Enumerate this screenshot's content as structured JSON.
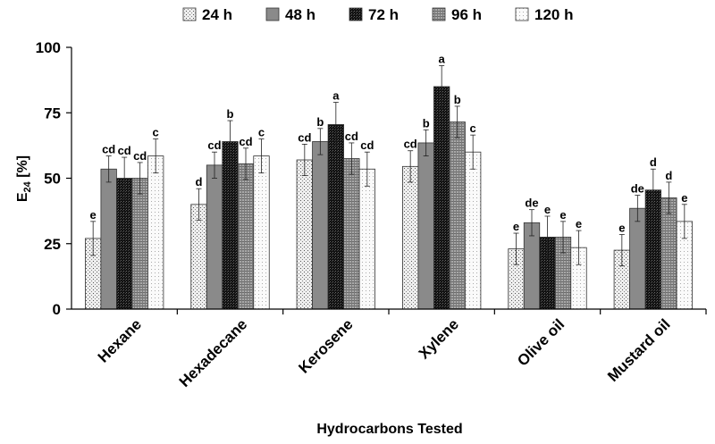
{
  "chart_data": {
    "type": "bar",
    "title": "",
    "xlabel": "Hydrocarbons Tested",
    "ylabel_main": "E",
    "ylabel_sub": "24",
    "ylabel_suffix": " [%]",
    "ylim": [
      0,
      100
    ],
    "yticks": [
      "0",
      "25",
      "50",
      "75",
      "100"
    ],
    "ytick_values": [
      0,
      25,
      50,
      75,
      100
    ],
    "grid": false,
    "legend_position": "top",
    "categories": [
      "Hexane",
      "Hexadecane",
      "Kerosene",
      "Xylene",
      "Olive oil",
      "Mustard oil"
    ],
    "series": [
      {
        "name": "24 h",
        "values": [
          27,
          40,
          57,
          54.5,
          23,
          22.5
        ],
        "errors": [
          6.5,
          6,
          6,
          6,
          6,
          6
        ],
        "letters": [
          "e",
          "d",
          "cd",
          "cd",
          "e",
          "e"
        ],
        "pattern": "dots-sparse",
        "color": "#e8e8e8"
      },
      {
        "name": "48 h",
        "values": [
          53.5,
          55,
          64,
          63.5,
          33,
          38.5
        ],
        "errors": [
          5,
          5,
          5,
          5,
          5,
          5
        ],
        "letters": [
          "cd",
          "cd",
          "b",
          "b",
          "de",
          "de"
        ],
        "pattern": "solid",
        "color": "#8a8a8a"
      },
      {
        "name": "72 h",
        "values": [
          50,
          64,
          70.5,
          85,
          27.5,
          45.5
        ],
        "errors": [
          8,
          8,
          8.5,
          8,
          8,
          8
        ],
        "letters": [
          "cd",
          "b",
          "a",
          "a",
          "e",
          "d"
        ],
        "pattern": "dark-check",
        "color": "#2a2a2a"
      },
      {
        "name": "96 h",
        "values": [
          50,
          55.5,
          57.5,
          71.5,
          27.5,
          42.5
        ],
        "errors": [
          6,
          6,
          6,
          6,
          6,
          6
        ],
        "letters": [
          "cd",
          "cd",
          "cd",
          "b",
          "e",
          "d"
        ],
        "pattern": "grid",
        "color": "#9a9a9a"
      },
      {
        "name": "120 h",
        "values": [
          58.5,
          58.5,
          53.5,
          60,
          23.5,
          33.5
        ],
        "errors": [
          6.5,
          6.5,
          6.5,
          6.5,
          6.5,
          6.5
        ],
        "letters": [
          "c",
          "c",
          "cd",
          "c",
          "e",
          "e"
        ],
        "pattern": "dots-fine",
        "color": "#f4f4f4"
      }
    ]
  }
}
